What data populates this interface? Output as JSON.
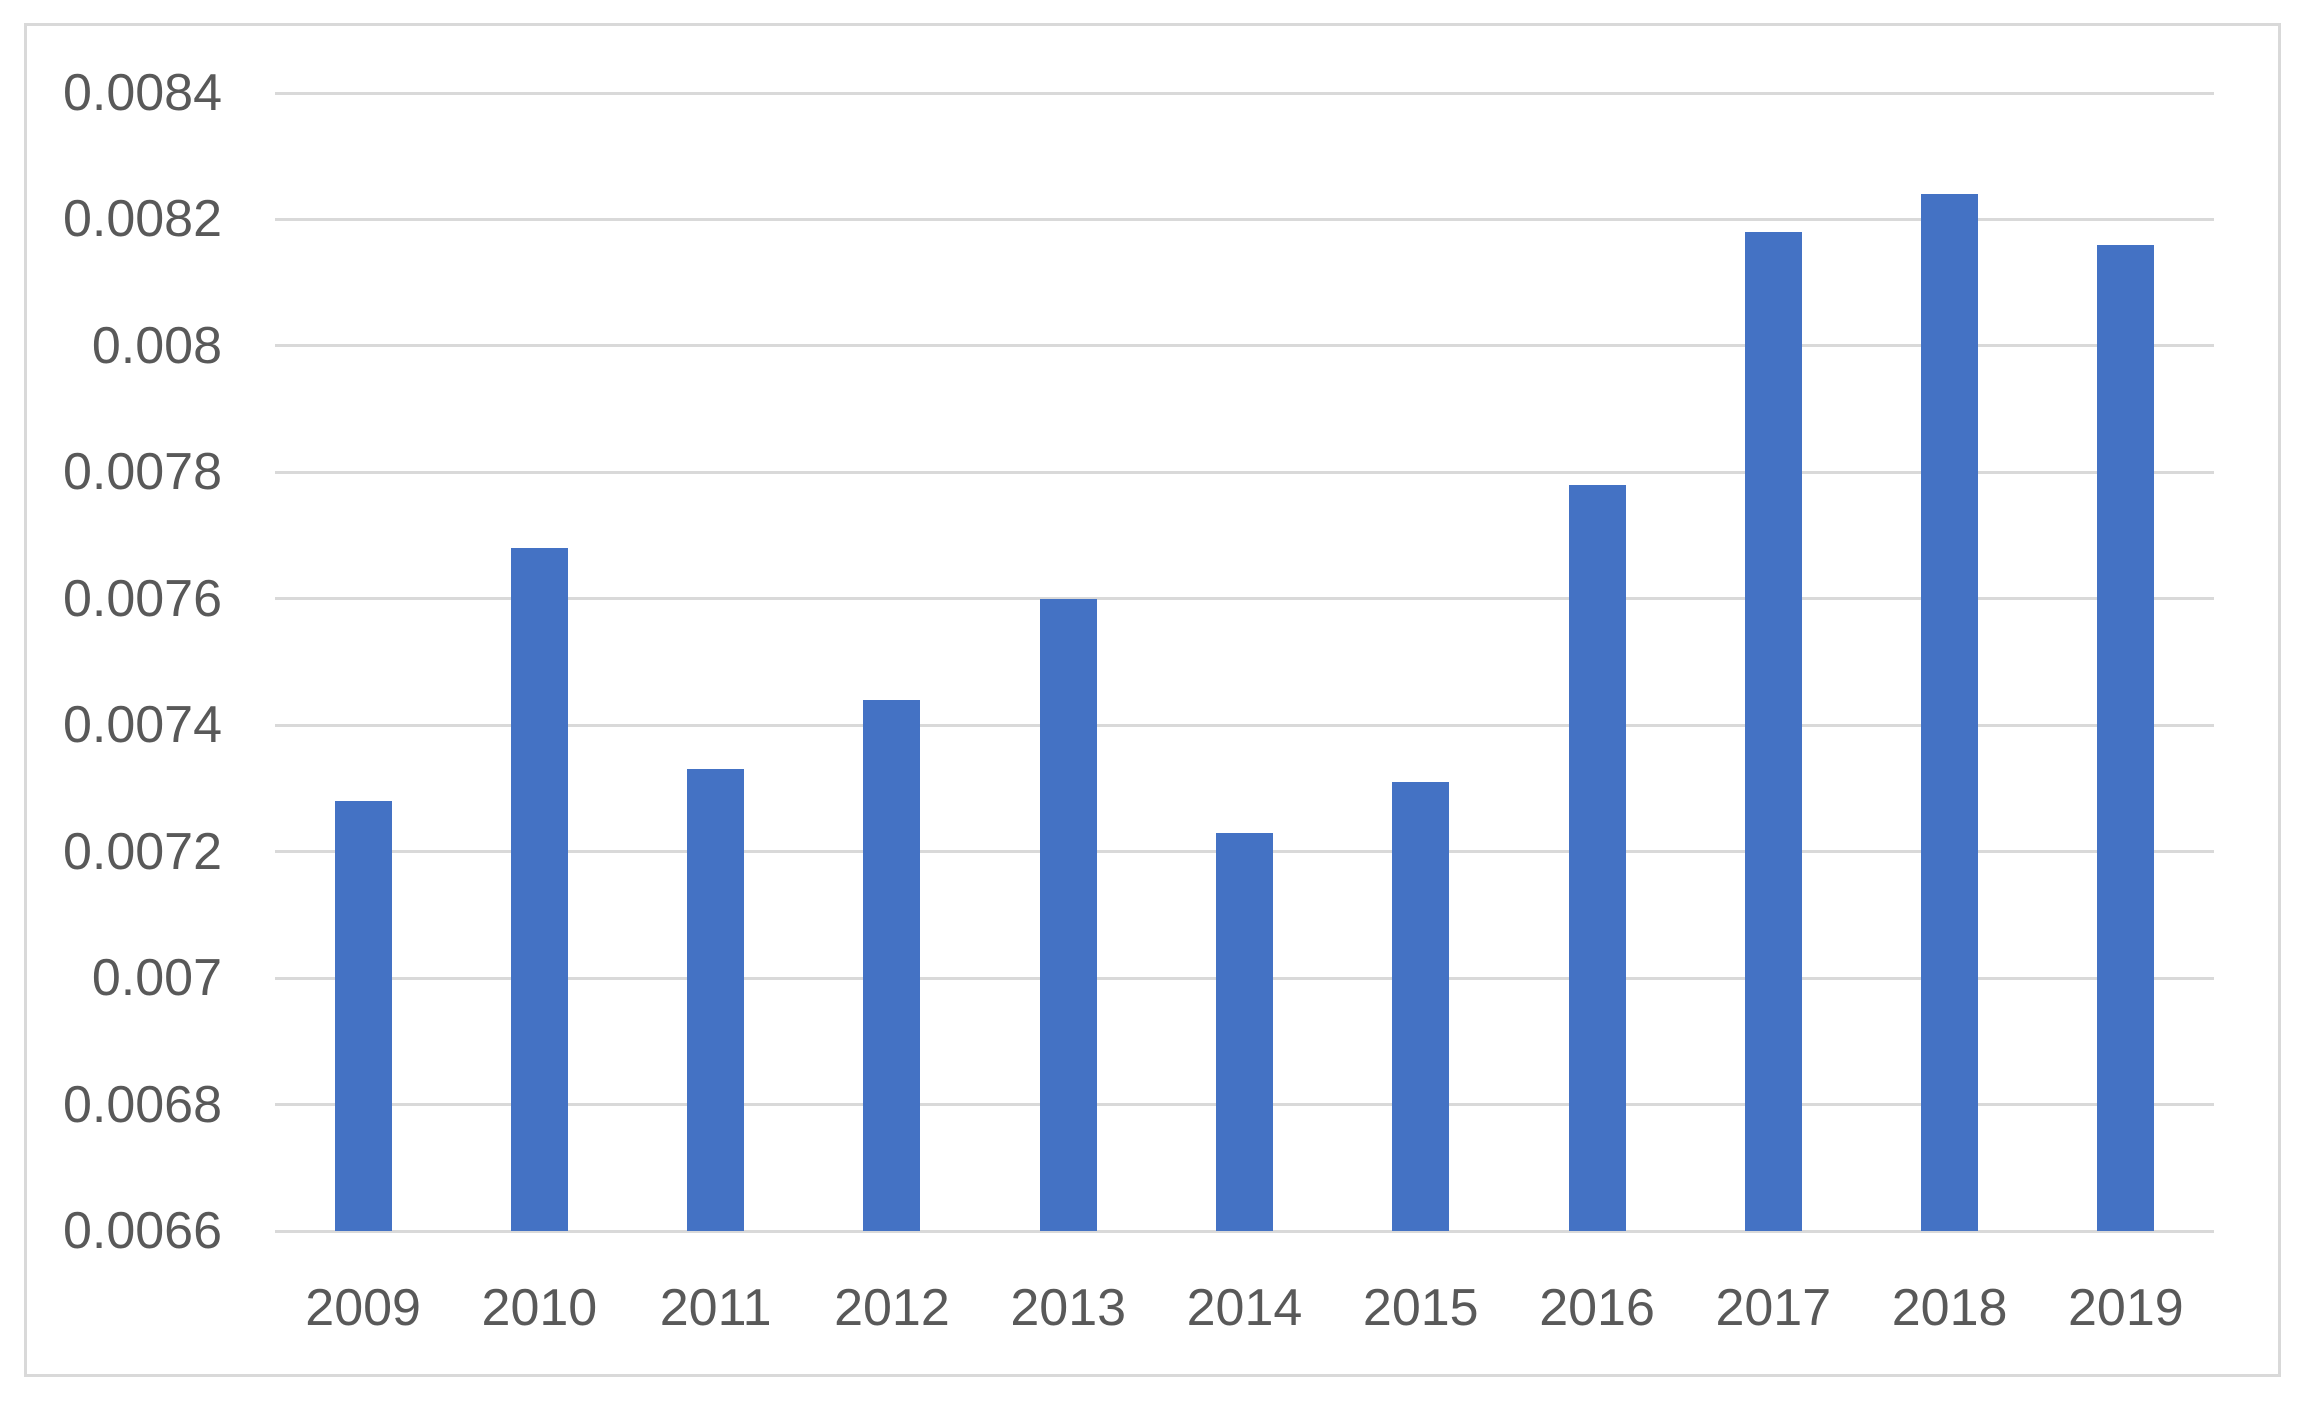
{
  "chart_data": {
    "type": "bar",
    "title": "",
    "xlabel": "",
    "ylabel": "",
    "categories": [
      "2009",
      "2010",
      "2011",
      "2012",
      "2013",
      "2014",
      "2015",
      "2016",
      "2017",
      "2018",
      "2019"
    ],
    "values": [
      0.00728,
      0.00768,
      0.00733,
      0.00744,
      0.0076,
      0.00723,
      0.00731,
      0.00778,
      0.00818,
      0.00824,
      0.00816
    ],
    "series_name": "",
    "ylim": [
      0.0066,
      0.0084
    ],
    "ytick_interval": 0.0002,
    "ytick_values": [
      0.0084,
      0.0082,
      0.008,
      0.0078,
      0.0076,
      0.0074,
      0.0072,
      0.007,
      0.0068,
      0.0066
    ],
    "ytick_labels": [
      "0.0084",
      "0.0082",
      "0.008",
      "0.0078",
      "0.0076",
      "0.0074",
      "0.0072",
      "0.007",
      "0.0068",
      "0.0066"
    ],
    "grid": true,
    "legend": "none",
    "colors": {
      "bar_fill": "#4472C4",
      "gridline": "#d9d9d9",
      "frame_border": "#d9d9d9",
      "axis_text": "#595959",
      "background": "#ffffff"
    }
  }
}
